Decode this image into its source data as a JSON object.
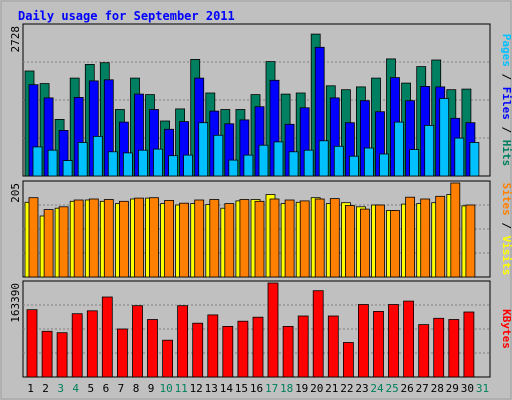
{
  "chart_data": {
    "type": "bar",
    "title": "Daily usage for September 2011",
    "days": [
      "1",
      "2",
      "3",
      "4",
      "5",
      "6",
      "7",
      "8",
      "9",
      "10",
      "11",
      "12",
      "13",
      "14",
      "15",
      "16",
      "17",
      "18",
      "19",
      "20",
      "21",
      "22",
      "23",
      "24",
      "25",
      "26",
      "27",
      "28",
      "29",
      "30",
      "31"
    ],
    "weekend_days": [
      "3",
      "4",
      "10",
      "11",
      "17",
      "18",
      "24",
      "25",
      "31"
    ],
    "panels": [
      {
        "name": "pages-files-hits",
        "ymax": 2728,
        "ymax_label": "2728",
        "side_label": [
          {
            "text": "Pages",
            "color": "#00c0ff"
          },
          {
            "text": " / ",
            "color": "#000000"
          },
          {
            "text": "Files",
            "color": "#0000ff"
          },
          {
            "text": " / ",
            "color": "#000000"
          },
          {
            "text": "Hits",
            "color": "#008060"
          }
        ],
        "series": [
          {
            "name": "Hits",
            "color": "#008060",
            "values": [
              1910,
              1680,
              1030,
              1780,
              2030,
              2060,
              1210,
              1780,
              1480,
              1000,
              1220,
              2120,
              1510,
              1210,
              1210,
              1480,
              2080,
              1490,
              1510,
              2580,
              1640,
              1570,
              1620,
              1780,
              2130,
              1690,
              1990,
              2110,
              1570,
              1580,
              null
            ]
          },
          {
            "name": "Files",
            "color": "#0000ff",
            "values": [
              1660,
              1420,
              830,
              1430,
              1730,
              1750,
              980,
              1490,
              1210,
              850,
              990,
              1780,
              1180,
              950,
              1020,
              1260,
              1740,
              940,
              1240,
              2340,
              1420,
              970,
              1370,
              1170,
              1790,
              1370,
              1630,
              1620,
              1050,
              970,
              null
            ]
          },
          {
            "name": "Pages",
            "color": "#00c0ff",
            "values": [
              530,
              470,
              280,
              610,
              720,
              440,
              420,
              470,
              490,
              370,
              380,
              970,
              740,
              290,
              380,
              560,
              620,
              440,
              470,
              640,
              540,
              360,
              510,
              400,
              980,
              480,
              920,
              1410,
              690,
              610,
              null
            ]
          }
        ]
      },
      {
        "name": "visits-sites",
        "ymax": 205,
        "ymax_label": "205",
        "side_label": [
          {
            "text": "Sites",
            "color": "#ff8000"
          },
          {
            "text": " / ",
            "color": "#000000"
          },
          {
            "text": "Visits",
            "color": "#ffff00"
          }
        ],
        "series": [
          {
            "name": "Visits",
            "color": "#ffff00",
            "values": [
              163,
              133,
              150,
              165,
              168,
              165,
              160,
              170,
              172,
              160,
              157,
              160,
              158,
              150,
              166,
              169,
              180,
              160,
              163,
              173,
              160,
              162,
              153,
              157,
              145,
              159,
              160,
              162,
              180,
              155,
              null
            ]
          },
          {
            "name": "Sites",
            "color": "#ff8000",
            "values": [
              173,
              147,
              153,
              168,
              170,
              169,
              165,
              172,
              173,
              167,
              161,
              168,
              169,
              160,
              169,
              165,
              170,
              168,
              166,
              170,
              171,
              156,
              148,
              157,
              145,
              174,
              170,
              176,
              205,
              157,
              null
            ]
          }
        ]
      },
      {
        "name": "kbytes",
        "ymax": 163390,
        "ymax_label": "163390",
        "side_label": [
          {
            "text": "KBytes",
            "color": "#ff0000"
          }
        ],
        "series": [
          {
            "name": "KBytes",
            "color": "#ff0000",
            "values": [
              117000,
              79500,
              77000,
              110000,
              115000,
              139000,
              83500,
              124000,
              100000,
              64000,
              124000,
              93500,
              108000,
              88000,
              97000,
              104000,
              163390,
              88000,
              106000,
              150000,
              106000,
              60000,
              126000,
              114000,
              126000,
              132000,
              91000,
              102000,
              100000,
              113000,
              null
            ]
          }
        ]
      }
    ]
  }
}
